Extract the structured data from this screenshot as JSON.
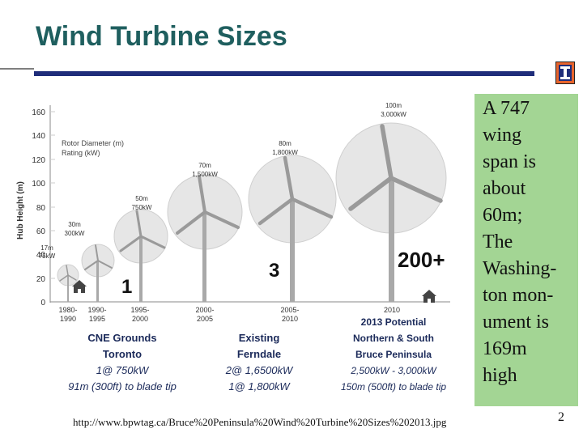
{
  "slide": {
    "title": "Wind Turbine Sizes",
    "source_url": "http://www.bpwtag.ca/Bruce%20Peninsula%20Wind%20Turbine%20Sizes%202013.jpg",
    "page_number": "2",
    "note_lines": [
      "A 747",
      "wing",
      "span is",
      "about",
      "60m;",
      "The",
      "Washing-",
      "ton mon-",
      "ument is",
      "169m",
      "high"
    ]
  },
  "figure": {
    "y_axis_label": "Hub Height (m)",
    "y_ticks": [
      "160",
      "140",
      "120",
      "100",
      "80",
      "60",
      "40",
      "20",
      "0"
    ],
    "legend_line1": "Rotor Diameter (m)",
    "legend_line2": "Rating (kW)",
    "turbines": [
      {
        "size": "17m",
        "rating": "75kW",
        "period_line1": "1980-",
        "period_line2": "1990"
      },
      {
        "size": "30m",
        "rating": "300kW",
        "period_line1": "1990-",
        "period_line2": "1995"
      },
      {
        "size": "50m",
        "rating": "750kW",
        "period_line1": "1995-",
        "period_line2": "2000"
      },
      {
        "size": "70m",
        "rating": "1,500kW",
        "period_line1": "2000-",
        "period_line2": "2005"
      },
      {
        "size": "80m",
        "rating": "1,800kW",
        "period_line1": "2005-",
        "period_line2": "2010"
      },
      {
        "size": "100m",
        "rating": "3,000kW",
        "period_line1": "2010",
        "period_line2": ""
      }
    ],
    "counts": [
      "1",
      "3",
      "200+"
    ],
    "groups": [
      {
        "l1": "CNE Grounds",
        "l2": "Toronto",
        "l3": "1@ 750kW",
        "l4": "91m (300ft) to blade tip"
      },
      {
        "l1": "Existing",
        "l2": "Ferndale",
        "l3": "2@ 1,6500kW",
        "l4": "1@ 1,800kW"
      },
      {
        "l1": "2013 Potential",
        "l2": "Northern & South",
        "l3": "Bruce Peninsula",
        "l4": "2,500kW  - 3,000kW",
        "l5": "150m (500ft) to blade tip"
      }
    ]
  },
  "colors": {
    "title": "#1f5f5f",
    "rule": "#1f2d7a",
    "note_bg": "#a3d594",
    "logo": "#e8642c",
    "circle_fill": "#e6e6e6",
    "turbine": "#a9a9a9",
    "group_label": "#1b2a5a"
  },
  "icons": [
    "university-logo-icon",
    "house-icon"
  ]
}
